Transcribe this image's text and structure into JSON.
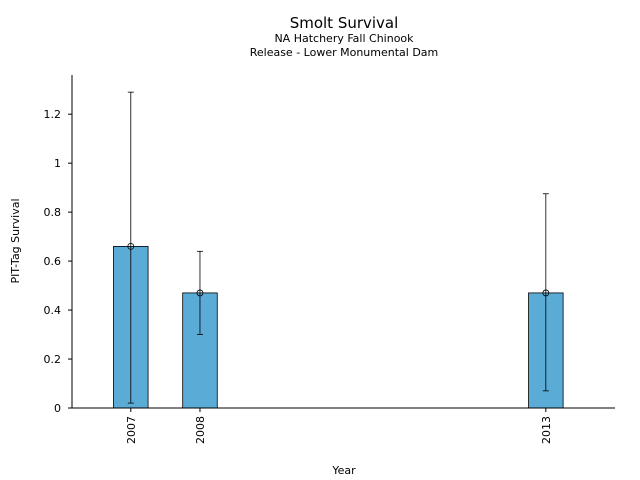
{
  "chart_data": {
    "type": "bar",
    "title": "Smolt Survival",
    "subtitle_lines": [
      "NA Hatchery Fall Chinook",
      "Release - Lower Monumental Dam"
    ],
    "xlabel": "Year",
    "ylabel": "PIT-Tag Survival",
    "x_categories": [
      "2007",
      "2008",
      "2013"
    ],
    "x_values": [
      2007,
      2008,
      2013
    ],
    "values": [
      0.66,
      0.47,
      0.47
    ],
    "error_low": [
      0.02,
      0.3,
      0.07
    ],
    "error_high": [
      1.29,
      0.64,
      0.875
    ],
    "ylim": [
      0,
      1.36
    ],
    "xlim": [
      2006.15,
      2014.0
    ],
    "yticks": [
      0,
      0.2,
      0.4,
      0.6,
      0.8,
      1,
      1.2
    ],
    "ytick_labels": [
      "0",
      "0.2",
      "0.4",
      "0.6",
      "0.8",
      "1",
      "1.2"
    ],
    "bar_color": "#5aabd6",
    "grid": false,
    "legend": "none"
  }
}
